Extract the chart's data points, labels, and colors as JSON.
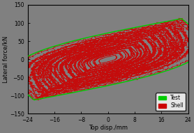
{
  "title": "",
  "xlabel": "Top disp./mm",
  "ylabel": "Lateral force/kN",
  "xlim": [
    -24,
    24
  ],
  "ylim": [
    -150,
    150
  ],
  "xticks": [
    -24,
    -16,
    -8,
    0,
    8,
    16,
    24
  ],
  "yticks": [
    -150,
    -100,
    -50,
    0,
    50,
    100,
    150
  ],
  "bg_color": "#808080",
  "test_color": "#00cc00",
  "shell_color": "#cc0000",
  "legend_labels": [
    "Test",
    "Shell"
  ],
  "figsize": [
    2.78,
    1.91
  ],
  "dpi": 100,
  "x_max": 22,
  "y_max": 112
}
